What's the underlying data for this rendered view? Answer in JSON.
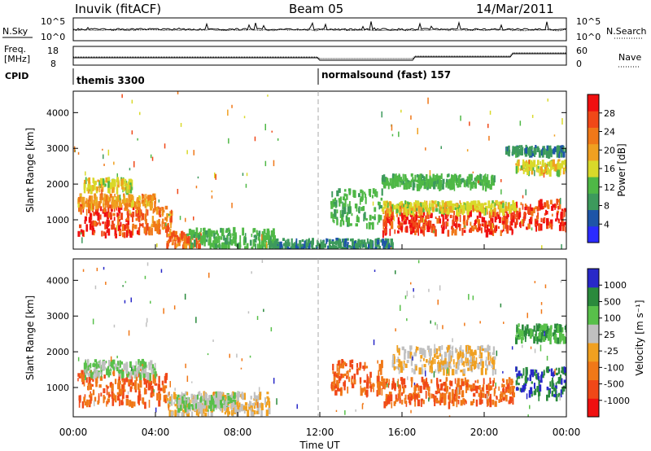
{
  "header": {
    "station": "Inuvik (fitACF)",
    "beam": "Beam 05",
    "date": "14/Mar/2011"
  },
  "top_panels": {
    "nsky_label": "N.Sky",
    "nsky_ticks": [
      "10^5",
      "10^0"
    ],
    "nsearch_label": "N.Search",
    "nsearch_ticks": [
      "10^5",
      "10^0"
    ],
    "freq_label_line1": "Freq.",
    "freq_label_line2": "[MHz]",
    "freq_ticks": [
      "18",
      "8"
    ],
    "nave_label": "Nave",
    "nave_ticks": [
      "60",
      "0"
    ],
    "cpid_label": "CPID",
    "cpid_segments": [
      {
        "name": "themis 3300",
        "start_hour": 0,
        "end_hour": 12
      },
      {
        "name": "normalsound (fast) 157",
        "start_hour": 12,
        "end_hour": 24
      }
    ]
  },
  "x_axis": {
    "label": "Time UT",
    "ticks": [
      "00:00",
      "04:00",
      "08:00",
      "12:00",
      "16:00",
      "20:00",
      "00:00"
    ],
    "tick_hours": [
      0,
      4,
      8,
      12,
      16,
      20,
      24
    ]
  },
  "y_axis": {
    "label": "Slant Range [km]",
    "ticks": [
      "1000",
      "2000",
      "3000",
      "4000"
    ],
    "tick_values": [
      1000,
      2000,
      3000,
      4000
    ],
    "range_km": [
      180,
      4600
    ]
  },
  "power_colorbar": {
    "label": "Power [dB]",
    "ticks": [
      "28",
      "24",
      "20",
      "16",
      "12",
      "8",
      "4"
    ],
    "colors": [
      "#2b2bff",
      "#1e55a8",
      "#3d9a5c",
      "#4fb846",
      "#d9d92a",
      "#f0a020",
      "#f07818",
      "#f04818",
      "#f01010"
    ]
  },
  "velocity_colorbar": {
    "label": "Velocity [m s⁻¹]",
    "ticks": [
      "1000",
      "500",
      "100",
      "25",
      "-25",
      "-100",
      "-500",
      "-1000"
    ],
    "colors": [
      "#2828c8",
      "#2a8a3c",
      "#58c04a",
      "#c0c0c0",
      "#f0a020",
      "#f07818",
      "#f04818",
      "#f01010"
    ]
  },
  "chart_data": [
    {
      "type": "heatmap",
      "title": "Power",
      "xlabel": "Time UT",
      "ylabel": "Slant Range [km]",
      "xlim": [
        0,
        24
      ],
      "ylim": [
        180,
        4600
      ],
      "units": "dB",
      "colorbar_ticks": [
        28,
        24,
        20,
        16,
        12,
        8,
        4
      ],
      "blobs": [
        {
          "t0": 0.2,
          "t1": 3.2,
          "r0": 600,
          "r1": 1450,
          "value": 28
        },
        {
          "t0": 0.2,
          "t1": 4.0,
          "r0": 1450,
          "r1": 1750,
          "value": 20
        },
        {
          "t0": 3.0,
          "t1": 4.8,
          "r0": 700,
          "r1": 1400,
          "value": 24
        },
        {
          "t0": 0.5,
          "t1": 2.8,
          "r0": 1900,
          "r1": 2200,
          "value": 16
        },
        {
          "t0": 4.5,
          "t1": 6.2,
          "r0": 300,
          "r1": 700,
          "value": 24
        },
        {
          "t0": 5.5,
          "t1": 9.8,
          "r0": 250,
          "r1": 800,
          "value": 12
        },
        {
          "t0": 9.5,
          "t1": 15.5,
          "r0": 180,
          "r1": 500,
          "value": 8
        },
        {
          "t0": 12.5,
          "t1": 15.0,
          "r0": 900,
          "r1": 1900,
          "value": 12
        },
        {
          "t0": 15.0,
          "t1": 21.5,
          "r0": 700,
          "r1": 1300,
          "value": 28
        },
        {
          "t0": 15.0,
          "t1": 21.5,
          "r0": 1300,
          "r1": 1550,
          "value": 16
        },
        {
          "t0": 21.5,
          "t1": 24.0,
          "r0": 800,
          "r1": 1600,
          "value": 28
        },
        {
          "t0": 15.0,
          "t1": 20.5,
          "r0": 2000,
          "r1": 2300,
          "value": 12
        },
        {
          "t0": 21.5,
          "t1": 24.0,
          "r0": 2400,
          "r1": 2700,
          "value": 16
        },
        {
          "t0": 21.0,
          "t1": 24.0,
          "r0": 2900,
          "r1": 3100,
          "value": 8
        }
      ]
    },
    {
      "type": "heatmap",
      "title": "Velocity",
      "xlabel": "Time UT",
      "ylabel": "Slant Range [km]",
      "xlim": [
        0,
        24
      ],
      "ylim": [
        180,
        4600
      ],
      "units": "m s-1",
      "colorbar_ticks": [
        1000,
        500,
        100,
        25,
        -25,
        -100,
        -500,
        -1000
      ],
      "blobs": [
        {
          "t0": 0.2,
          "t1": 4.5,
          "r0": 600,
          "r1": 1500,
          "value": -100
        },
        {
          "t0": 0.5,
          "t1": 4.0,
          "r0": 1400,
          "r1": 1800,
          "value": 100
        },
        {
          "t0": 4.5,
          "t1": 9.5,
          "r0": 300,
          "r1": 900,
          "value": 25
        },
        {
          "t0": 5.0,
          "t1": 8.0,
          "r0": 500,
          "r1": 900,
          "value": 100
        },
        {
          "t0": 12.5,
          "t1": 15.0,
          "r0": 900,
          "r1": 1800,
          "value": -100
        },
        {
          "t0": 15.0,
          "t1": 21.5,
          "r0": 600,
          "r1": 1300,
          "value": -100
        },
        {
          "t0": 15.5,
          "t1": 20.5,
          "r0": 1500,
          "r1": 2200,
          "value": 25
        },
        {
          "t0": 21.5,
          "t1": 24.0,
          "r0": 800,
          "r1": 1600,
          "value": 1000
        },
        {
          "t0": 21.5,
          "t1": 24.0,
          "r0": 2400,
          "r1": 2800,
          "value": 500
        }
      ]
    }
  ]
}
